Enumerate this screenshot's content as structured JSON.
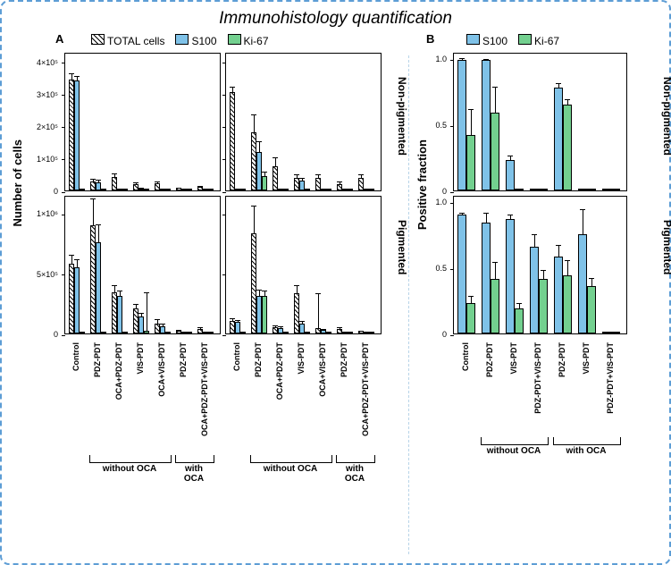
{
  "colors": {
    "border_dashed": "#5d9dd5",
    "divider": "#b8d4e8",
    "hatch_fg": "#000000",
    "hatch_bg": "#ffffff",
    "blue_fill": "#7fc2e8",
    "green_fill": "#73d08f",
    "axis": "#000000",
    "background": "#ffffff"
  },
  "title": "Immunohistology quantification",
  "panelA_label": "A",
  "panelB_label": "B",
  "legendA": {
    "total": "TOTAL cells",
    "s100": "S100",
    "ki67": "Ki-67"
  },
  "legendB": {
    "s100": "S100",
    "ki67": "Ki-67"
  },
  "row_labels": {
    "top": "Non-pigmented",
    "bottom": "Pigmented"
  },
  "yaxisA": "Number of cells",
  "yaxisB": "Positive fraction",
  "panelA": {
    "type": "bar",
    "top": {
      "yformat": "sci",
      "ylim_max": 430000,
      "ticks": [
        0,
        100000,
        200000,
        300000,
        400000
      ],
      "tick_labels": [
        "0",
        "1×10⁵",
        "2×10⁵",
        "3×10⁵",
        "4×10⁵"
      ]
    },
    "bottom": {
      "yformat": "sci",
      "ylim_max": 1150000,
      "ticks": [
        0,
        500000,
        1000000
      ],
      "tick_labels": [
        "0",
        "5×10⁵",
        "1×10⁶"
      ]
    },
    "left_cats": [
      "Control",
      "PDZ-PDT",
      "OCA+PDZ-PDT",
      "VIS-PDT",
      "OCA+VIS-PDT",
      "PDZ-PDT",
      "OCA+PDZ-PDT+VIS-PDT"
    ],
    "right_cats": [
      "Control",
      "PDZ-PDT",
      "OCA+PDZ-PDT",
      "VIS-PDT",
      "OCA+VIS-PDT",
      "PDZ-PDT",
      "OCA+PDZ-PDT+VIS-PDT"
    ],
    "bracket_left": {
      "label": "without OCA",
      "from": 1,
      "to": 4
    },
    "bracket_right": {
      "label": "with OCA",
      "from": 5,
      "to": 6
    },
    "data": {
      "top_left": {
        "total": [
          {
            "v": 345000,
            "e": 20000
          },
          {
            "v": 27000,
            "e": 12000
          },
          {
            "v": 42000,
            "e": 13000
          },
          {
            "v": 20000,
            "e": 8000
          },
          {
            "v": 21000,
            "e": 10000
          },
          {
            "v": 7000,
            "e": 5000
          },
          {
            "v": 12000,
            "e": 6000
          }
        ],
        "s100": [
          {
            "v": 340000,
            "e": 18000
          },
          {
            "v": 26000,
            "e": 10000
          },
          {
            "v": 0,
            "e": 0
          },
          {
            "v": 6000,
            "e": 4000
          },
          {
            "v": 0,
            "e": 0
          },
          {
            "v": 0,
            "e": 0
          },
          {
            "v": 0,
            "e": 0
          }
        ],
        "ki67": [
          {
            "v": 0,
            "e": 0
          },
          {
            "v": 0,
            "e": 0
          },
          {
            "v": 0,
            "e": 0
          },
          {
            "v": 0,
            "e": 0
          },
          {
            "v": 0,
            "e": 0
          },
          {
            "v": 0,
            "e": 0
          },
          {
            "v": 0,
            "e": 0
          }
        ]
      },
      "top_right": {
        "total": [
          {
            "v": 305000,
            "e": 20000
          },
          {
            "v": 180000,
            "e": 60000
          },
          {
            "v": 75000,
            "e": 30000
          },
          {
            "v": 38000,
            "e": 16000
          },
          {
            "v": 38000,
            "e": 14000
          },
          {
            "v": 20000,
            "e": 10000
          },
          {
            "v": 38000,
            "e": 14000
          }
        ],
        "s100": [
          {
            "v": 0,
            "e": 0
          },
          {
            "v": 120000,
            "e": 35000
          },
          {
            "v": 0,
            "e": 0
          },
          {
            "v": 30000,
            "e": 12000
          },
          {
            "v": 0,
            "e": 0
          },
          {
            "v": 0,
            "e": 0
          },
          {
            "v": 0,
            "e": 0
          }
        ],
        "ki67": [
          {
            "v": 0,
            "e": 0
          },
          {
            "v": 45000,
            "e": 15000
          },
          {
            "v": 0,
            "e": 0
          },
          {
            "v": 0,
            "e": 0
          },
          {
            "v": 0,
            "e": 0
          },
          {
            "v": 0,
            "e": 0
          },
          {
            "v": 0,
            "e": 0
          }
        ]
      },
      "bottom_left": {
        "total": [
          {
            "v": 580000,
            "e": 80000
          },
          {
            "v": 900000,
            "e": 230000
          },
          {
            "v": 345000,
            "e": 60000
          },
          {
            "v": 210000,
            "e": 40000
          },
          {
            "v": 85000,
            "e": 40000
          },
          {
            "v": 20000,
            "e": 15000
          },
          {
            "v": 40000,
            "e": 20000
          }
        ],
        "s100": [
          {
            "v": 550000,
            "e": 70000
          },
          {
            "v": 760000,
            "e": 150000
          },
          {
            "v": 310000,
            "e": 50000
          },
          {
            "v": 140000,
            "e": 35000
          },
          {
            "v": 60000,
            "e": 30000
          },
          {
            "v": 0,
            "e": 0
          },
          {
            "v": 0,
            "e": 0
          }
        ],
        "ki67": [
          {
            "v": 0,
            "e": 0
          },
          {
            "v": 0,
            "e": 0
          },
          {
            "v": 0,
            "e": 0
          },
          {
            "v": 20000,
            "e": 330000
          },
          {
            "v": 0,
            "e": 0
          },
          {
            "v": 0,
            "e": 0
          },
          {
            "v": 0,
            "e": 0
          }
        ]
      },
      "bottom_right": {
        "total": [
          {
            "v": 105000,
            "e": 30000
          },
          {
            "v": 830000,
            "e": 240000
          },
          {
            "v": 52000,
            "e": 20000
          },
          {
            "v": 335000,
            "e": 70000
          },
          {
            "v": 45000,
            "e": 300000
          },
          {
            "v": 38000,
            "e": 18000
          },
          {
            "v": 20000,
            "e": 12000
          }
        ],
        "s100": [
          {
            "v": 95000,
            "e": 25000
          },
          {
            "v": 310000,
            "e": 60000
          },
          {
            "v": 48000,
            "e": 18000
          },
          {
            "v": 80000,
            "e": 30000
          },
          {
            "v": 32000,
            "e": 15000
          },
          {
            "v": 0,
            "e": 0
          },
          {
            "v": 0,
            "e": 0
          }
        ],
        "ki67": [
          {
            "v": 0,
            "e": 0
          },
          {
            "v": 310000,
            "e": 50000
          },
          {
            "v": 0,
            "e": 0
          },
          {
            "v": 0,
            "e": 0
          },
          {
            "v": 0,
            "e": 0
          },
          {
            "v": 0,
            "e": 0
          },
          {
            "v": 0,
            "e": 0
          }
        ]
      }
    }
  },
  "panelB": {
    "type": "bar",
    "ylim_max": 1.05,
    "ticks": [
      0,
      0.5,
      1.0
    ],
    "tick_labels": [
      "0",
      "0.5",
      "1.0"
    ],
    "cats": [
      "Control",
      "PDZ-PDT",
      "VIS-PDT",
      "PDZ-PDT+VIS-PDT",
      "PDZ-PDT",
      "VIS-PDT",
      "PDZ-PDT+VIS-PDT"
    ],
    "bracket_left": {
      "label": "without OCA",
      "from": 1,
      "to": 3
    },
    "bracket_right": {
      "label": "with OCA",
      "from": 4,
      "to": 6
    },
    "data": {
      "top": {
        "s100": [
          {
            "v": 0.99,
            "e": 0.02
          },
          {
            "v": 0.99,
            "e": 0.01
          },
          {
            "v": 0.23,
            "e": 0.04
          },
          {
            "v": 0,
            "e": 0
          },
          {
            "v": 0.78,
            "e": 0.04
          },
          {
            "v": 0,
            "e": 0
          },
          {
            "v": 0,
            "e": 0
          }
        ],
        "ki67": [
          {
            "v": 0.42,
            "e": 0.2
          },
          {
            "v": 0.59,
            "e": 0.2
          },
          {
            "v": 0,
            "e": 0
          },
          {
            "v": 0,
            "e": 0
          },
          {
            "v": 0.65,
            "e": 0.05
          },
          {
            "v": 0,
            "e": 0
          },
          {
            "v": 0,
            "e": 0
          }
        ]
      },
      "bottom": {
        "s100": [
          {
            "v": 0.9,
            "e": 0.02
          },
          {
            "v": 0.84,
            "e": 0.08
          },
          {
            "v": 0.87,
            "e": 0.04
          },
          {
            "v": 0.66,
            "e": 0.1
          },
          {
            "v": 0.58,
            "e": 0.1
          },
          {
            "v": 0.75,
            "e": 0.2
          },
          {
            "v": 0,
            "e": 0
          }
        ],
        "ki67": [
          {
            "v": 0.23,
            "e": 0.06
          },
          {
            "v": 0.41,
            "e": 0.14
          },
          {
            "v": 0.19,
            "e": 0.05
          },
          {
            "v": 0.41,
            "e": 0.08
          },
          {
            "v": 0.44,
            "e": 0.12
          },
          {
            "v": 0.36,
            "e": 0.07
          },
          {
            "v": 0,
            "e": 0
          }
        ]
      }
    }
  }
}
